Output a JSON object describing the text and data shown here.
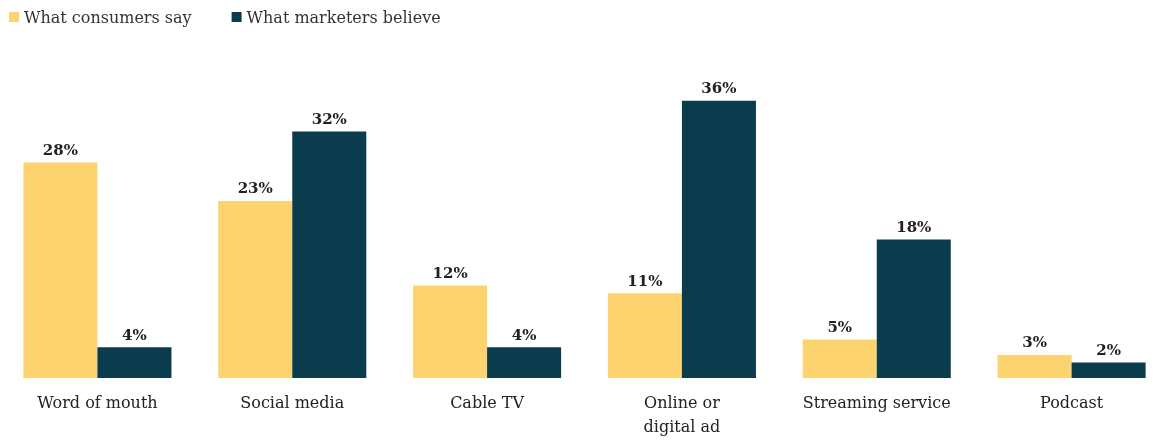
{
  "chart_data": {
    "type": "bar",
    "categories": [
      "Word of mouth",
      "Social media",
      "Cable TV",
      "Online or digital ad",
      "Streaming service",
      "Podcast"
    ],
    "series": [
      {
        "name": "What consumers say",
        "color": "#fdd370",
        "values": [
          28,
          23,
          12,
          11,
          5,
          3
        ],
        "value_labels": [
          "28%",
          "23%",
          "12%",
          "11%",
          "5%",
          "3%"
        ]
      },
      {
        "name": "What marketers believe",
        "color": "#0b3c4d",
        "values": [
          4,
          32,
          4,
          36,
          18,
          2
        ],
        "value_labels": [
          "4%",
          "32%",
          "4%",
          "36%",
          "18%",
          "2%"
        ]
      }
    ],
    "legend": "top left"
  }
}
